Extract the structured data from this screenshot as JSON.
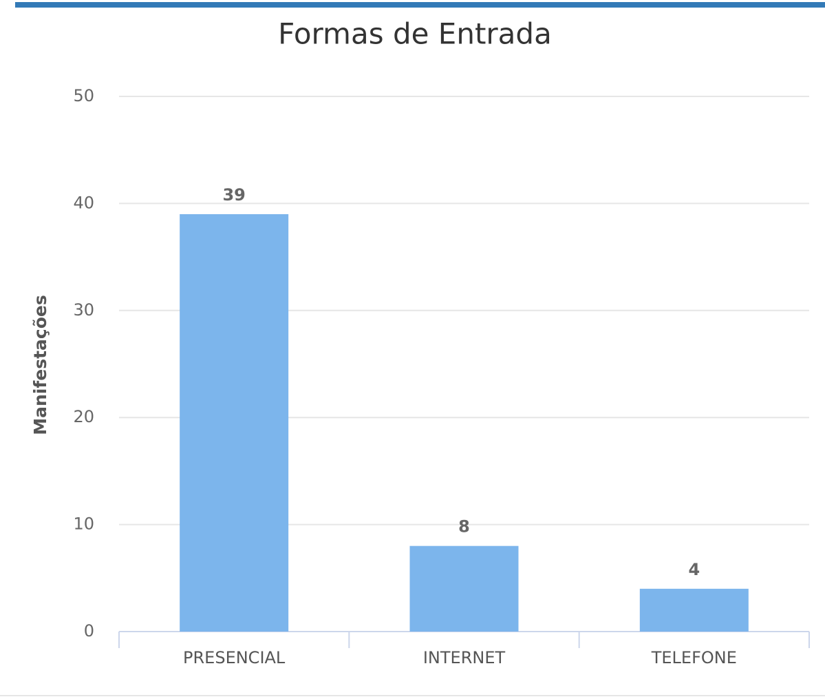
{
  "chart_data": {
    "type": "bar",
    "title": "Formas de Entrada",
    "y_label": "Manifestações",
    "categories": [
      "PRESENCIAL",
      "INTERNET",
      "TELEFONE"
    ],
    "values": [
      39,
      8,
      4
    ],
    "color": "#7cb5ec",
    "ylim": [
      0,
      50
    ],
    "yticks": [
      0,
      10,
      20,
      30,
      40,
      50
    ],
    "grid": true
  }
}
